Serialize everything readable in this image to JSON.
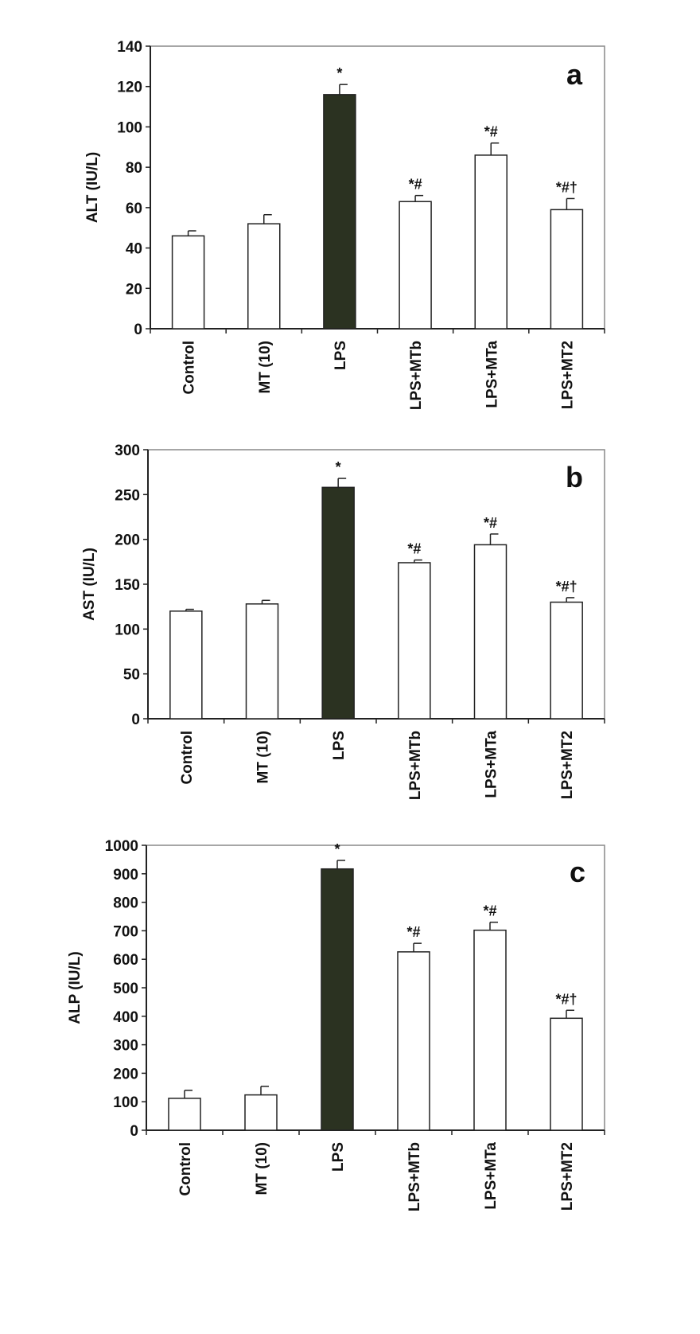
{
  "chart_data": [
    {
      "type": "bar",
      "panel": "a",
      "ylabel": "ALT (IU/L)",
      "categories": [
        "Control",
        "MT (10)",
        "LPS",
        "LPS+MTb",
        "LPS+MTa",
        "LPS+MT2"
      ],
      "values": [
        46,
        52,
        116,
        63,
        86,
        59
      ],
      "errors": [
        2.5,
        4.5,
        5,
        3,
        6,
        5.5
      ],
      "annotations": [
        "",
        "",
        "*",
        "*#",
        "*#",
        "*#†"
      ],
      "ylim": [
        0,
        140
      ],
      "yticks": [
        0,
        20,
        40,
        60,
        80,
        100,
        120,
        140
      ],
      "highlight_index": 2,
      "colors": {
        "highlight": "#2b3221",
        "default": "#ffffff"
      }
    },
    {
      "type": "bar",
      "panel": "b",
      "ylabel": "AST (IU/L)",
      "categories": [
        "Control",
        "MT (10)",
        "LPS",
        "LPS+MTb",
        "LPS+MTa",
        "LPS+MT2"
      ],
      "values": [
        120,
        128,
        258,
        174,
        194,
        130
      ],
      "errors": [
        2,
        4,
        10,
        3,
        12,
        5
      ],
      "annotations": [
        "",
        "",
        "*",
        "*#",
        "*#",
        "*#†"
      ],
      "ylim": [
        0,
        300
      ],
      "yticks": [
        0,
        50,
        100,
        150,
        200,
        250,
        300
      ],
      "highlight_index": 2,
      "colors": {
        "highlight": "#2b3221",
        "default": "#ffffff"
      }
    },
    {
      "type": "bar",
      "panel": "c",
      "ylabel": "ALP (IU/L)",
      "categories": [
        "Control",
        "MT (10)",
        "LPS",
        "LPS+MTb",
        "LPS+MTa",
        "LPS+MT2"
      ],
      "values": [
        112,
        124,
        917,
        626,
        702,
        393
      ],
      "errors": [
        28,
        30,
        30,
        30,
        28,
        28
      ],
      "annotations": [
        "",
        "",
        "*",
        "*#",
        "*#",
        "*#†"
      ],
      "ylim": [
        0,
        1000
      ],
      "yticks": [
        0,
        100,
        200,
        300,
        400,
        500,
        600,
        700,
        800,
        900,
        1000
      ],
      "highlight_index": 2,
      "colors": {
        "highlight": "#2b3221",
        "default": "#ffffff"
      }
    }
  ]
}
